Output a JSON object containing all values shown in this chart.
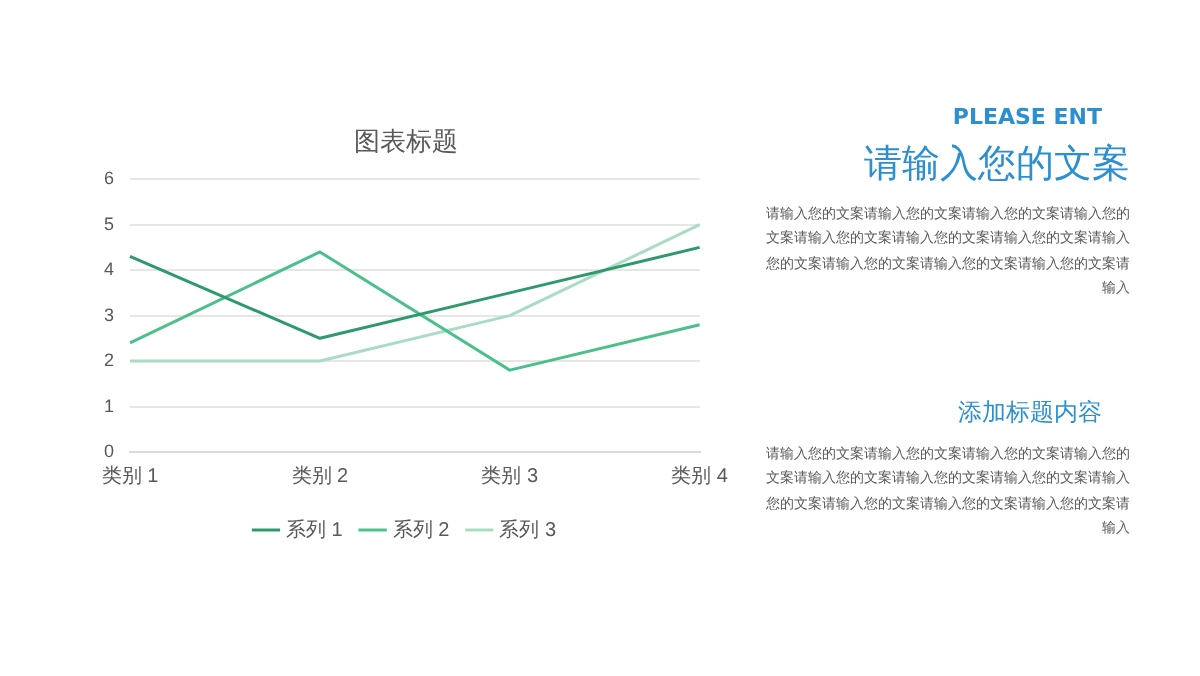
{
  "chart_data": {
    "type": "line",
    "title": "图表标题",
    "categories": [
      "类别 1",
      "类别 2",
      "类别 3",
      "类别 4"
    ],
    "series": [
      {
        "name": "系列 1",
        "color": "#2e9a6c",
        "values": [
          4.3,
          2.5,
          3.5,
          4.5
        ]
      },
      {
        "name": "系列 2",
        "color": "#4cc08c",
        "values": [
          2.4,
          4.4,
          1.8,
          2.8
        ]
      },
      {
        "name": "系列 3",
        "color": "#a9dcc2",
        "values": [
          2,
          2,
          3,
          5
        ]
      }
    ],
    "ylim": [
      0,
      6
    ],
    "yticks": [
      0,
      1,
      2,
      3,
      4,
      5,
      6
    ],
    "grid": "y",
    "legend": "bottom",
    "marker": "none",
    "line_style": "solid",
    "annotations": [
      "PLEASE ENT",
      "请输入您的文案",
      "请输入您的文案请输入您的文案请输入您的文案请输入您的文案请输入您的文案请输入您的文案请输入您的文案请输入您的文案请输入您的文案请输入您的文案请输入您的文案请输入",
      "添加标题内容",
      "请输入您的文案请输入您的文案请输入您的文案请输入您的文案请输入您的文案请输入您的文案请输入您的文案请输入您的文案请输入您的文案请输入您的文案请输入您的文案请输入"
    ]
  }
}
